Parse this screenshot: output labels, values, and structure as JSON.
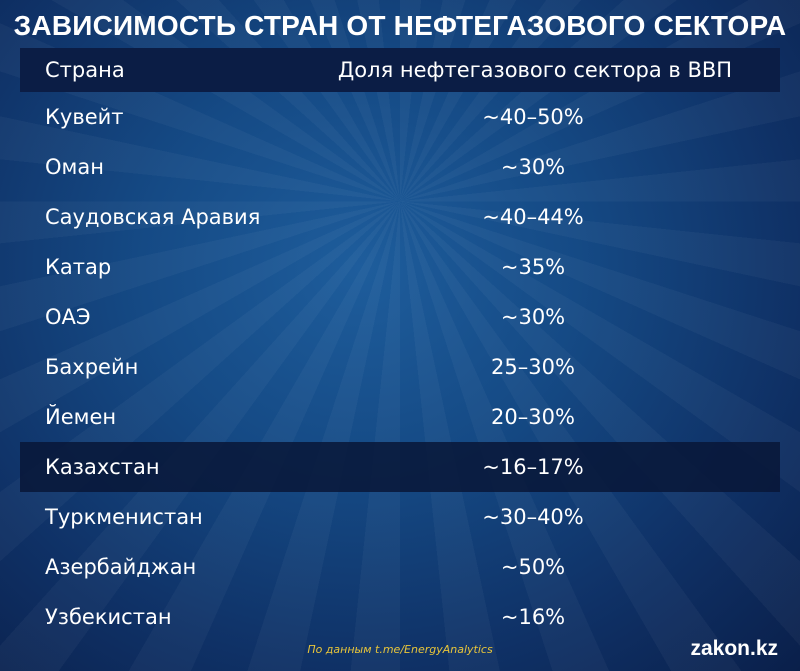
{
  "header": {
    "title": "ЗАВИСИМОСТЬ СТРАН ОТ НЕФТЕГАЗОВОГО СЕКТОРА"
  },
  "table": {
    "columns": [
      "Страна",
      "Доля нефтегазового сектора в ВВП"
    ],
    "rows": [
      [
        "Кувейт",
        "~40–50%"
      ],
      [
        "Оман",
        "~30%"
      ],
      [
        "Саудовская Аравия",
        "~40–44%"
      ],
      [
        "Катар",
        "~35%"
      ],
      [
        "ОАЭ",
        "~30%"
      ],
      [
        "Бахрейн",
        "25–30%"
      ],
      [
        "Йемен",
        "20–30%"
      ],
      [
        "Казахстан",
        "~16–17%"
      ],
      [
        "Туркменистан",
        "~30–40%"
      ],
      [
        "Азербайджан",
        "~50%"
      ],
      [
        "Узбекистан",
        "~16%"
      ]
    ]
  },
  "footer": {
    "source": "По данным t.me/EnergyAnalytics",
    "brand": "zakon.kz"
  }
}
